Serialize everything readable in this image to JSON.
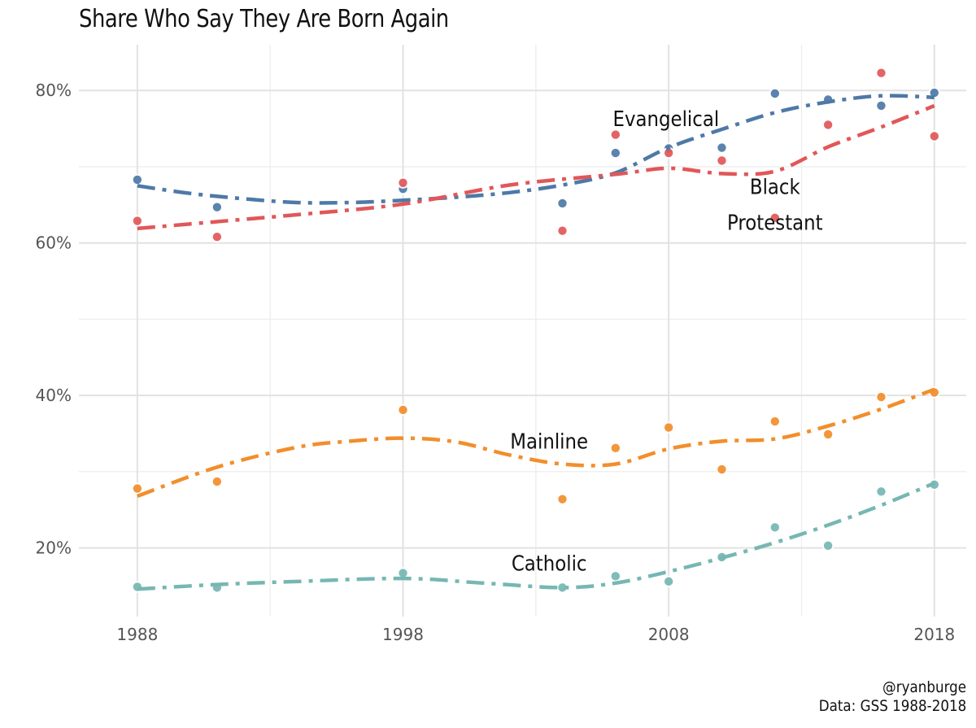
{
  "chart_data": {
    "type": "line",
    "title": "Share Who Say They Are Born Again",
    "caption": [
      "@ryanburge",
      "Data: GSS 1988-2018"
    ],
    "xlabel": "",
    "ylabel": "",
    "xlim": [
      1985.8,
      2019.2
    ],
    "ylim": [
      11,
      86
    ],
    "x_ticks": [
      1988,
      1998,
      2008,
      2018
    ],
    "x_tick_labels": [
      "1988",
      "1998",
      "2008",
      "2018"
    ],
    "y_ticks": [
      20,
      40,
      60,
      80
    ],
    "y_tick_labels": [
      "20%",
      "40%",
      "60%",
      "80%"
    ],
    "grid": true,
    "legend": "none",
    "series": [
      {
        "name": "Evangelical",
        "color": "#4e79a7",
        "points": [
          [
            1988,
            68.3
          ],
          [
            1991,
            64.7
          ],
          [
            1998,
            67.1
          ],
          [
            2004,
            65.2
          ],
          [
            2006,
            71.8
          ],
          [
            2008,
            72.4
          ],
          [
            2010,
            72.5
          ],
          [
            2012,
            79.6
          ],
          [
            2014,
            78.8
          ],
          [
            2016,
            78.0
          ],
          [
            2018,
            79.7
          ]
        ],
        "trend": [
          [
            1988,
            67.5
          ],
          [
            1990,
            66.5
          ],
          [
            1992,
            65.8
          ],
          [
            1994,
            65.3
          ],
          [
            1996,
            65.3
          ],
          [
            1998,
            65.6
          ],
          [
            2000,
            66.0
          ],
          [
            2002,
            66.6
          ],
          [
            2004,
            67.6
          ],
          [
            2006,
            69.2
          ],
          [
            2008,
            72.5
          ],
          [
            2010,
            74.9
          ],
          [
            2012,
            77.1
          ],
          [
            2014,
            78.5
          ],
          [
            2016,
            79.3
          ],
          [
            2018,
            79.1
          ]
        ],
        "label": "Evangelical",
        "label_pos": [
          2007.9,
          76.2
        ]
      },
      {
        "name": "Black Protestant",
        "color": "#e15759",
        "points": [
          [
            1988,
            62.9
          ],
          [
            1991,
            60.8
          ],
          [
            1998,
            67.9
          ],
          [
            2004,
            61.6
          ],
          [
            2006,
            74.2
          ],
          [
            2008,
            71.8
          ],
          [
            2010,
            70.8
          ],
          [
            2012,
            63.3
          ],
          [
            2014,
            75.5
          ],
          [
            2016,
            82.3
          ],
          [
            2018,
            74.0
          ]
        ],
        "trend": [
          [
            1988,
            61.9
          ],
          [
            1991,
            62.8
          ],
          [
            1994,
            63.7
          ],
          [
            1998,
            65.1
          ],
          [
            2002,
            67.6
          ],
          [
            2006,
            69.0
          ],
          [
            2008,
            69.8
          ],
          [
            2010,
            69.1
          ],
          [
            2012,
            69.4
          ],
          [
            2014,
            72.6
          ],
          [
            2016,
            75.2
          ],
          [
            2018,
            78.0
          ]
        ],
        "label": "Black\nProtestant",
        "label_pos": [
          2012.0,
          67.3
        ]
      },
      {
        "name": "Mainline",
        "color": "#f28e2b",
        "points": [
          [
            1988,
            27.8
          ],
          [
            1991,
            28.7
          ],
          [
            1998,
            38.1
          ],
          [
            2004,
            26.4
          ],
          [
            2006,
            33.1
          ],
          [
            2008,
            35.8
          ],
          [
            2010,
            30.3
          ],
          [
            2012,
            36.6
          ],
          [
            2014,
            34.9
          ],
          [
            2016,
            39.8
          ],
          [
            2018,
            40.4
          ]
        ],
        "trend": [
          [
            1988,
            26.8
          ],
          [
            1991,
            30.6
          ],
          [
            1994,
            33.2
          ],
          [
            1996,
            34.0
          ],
          [
            1998,
            34.4
          ],
          [
            2000,
            33.9
          ],
          [
            2002,
            32.2
          ],
          [
            2004,
            31.0
          ],
          [
            2006,
            31.0
          ],
          [
            2008,
            33.0
          ],
          [
            2010,
            34.0
          ],
          [
            2012,
            34.3
          ],
          [
            2014,
            36.0
          ],
          [
            2016,
            38.2
          ],
          [
            2018,
            40.8
          ]
        ],
        "label": "Mainline",
        "label_pos": [
          2003.5,
          33.9
        ]
      },
      {
        "name": "Catholic",
        "color": "#76b7b2",
        "points": [
          [
            1988,
            14.9
          ],
          [
            1991,
            14.8
          ],
          [
            1998,
            16.7
          ],
          [
            2004,
            14.8
          ],
          [
            2006,
            16.3
          ],
          [
            2008,
            15.6
          ],
          [
            2010,
            18.8
          ],
          [
            2012,
            22.7
          ],
          [
            2014,
            20.3
          ],
          [
            2016,
            27.4
          ],
          [
            2018,
            28.3
          ]
        ],
        "trend": [
          [
            1988,
            14.6
          ],
          [
            1991,
            15.2
          ],
          [
            1994,
            15.6
          ],
          [
            1998,
            16.0
          ],
          [
            2001,
            15.4
          ],
          [
            2004,
            14.8
          ],
          [
            2006,
            15.4
          ],
          [
            2008,
            16.9
          ],
          [
            2010,
            18.7
          ],
          [
            2012,
            20.7
          ],
          [
            2014,
            23.0
          ],
          [
            2016,
            25.6
          ],
          [
            2018,
            28.5
          ]
        ],
        "label": "Catholic",
        "label_pos": [
          2003.5,
          17.9
        ]
      }
    ]
  }
}
